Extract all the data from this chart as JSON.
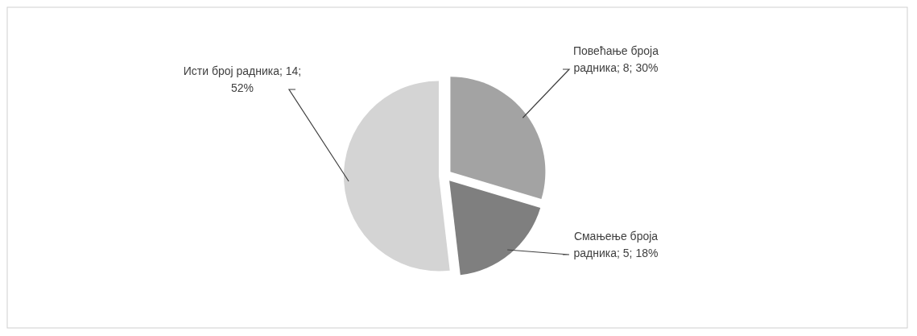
{
  "chart_data": {
    "type": "pie",
    "categories": [
      "Повећање броја радника",
      "Смањење броја радника",
      "Исти број радника"
    ],
    "values": [
      8,
      5,
      14
    ],
    "value_labels": [
      "8; 30%",
      "5; 18%",
      "14; 52%"
    ],
    "colors": [
      "#a3a3a3",
      "#7f7f7f",
      "#d4d4d4"
    ]
  }
}
